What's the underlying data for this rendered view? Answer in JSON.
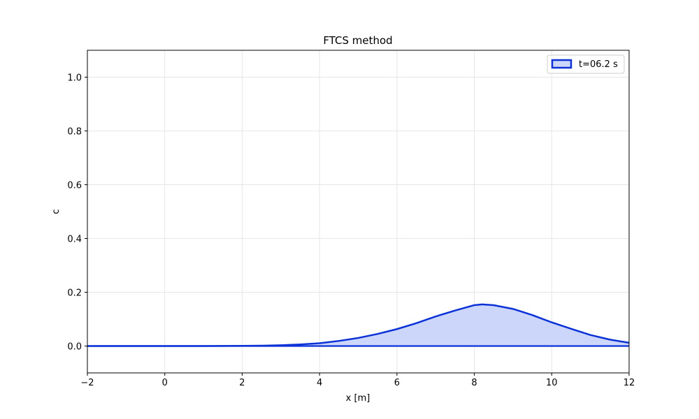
{
  "chart_data": {
    "type": "area",
    "title": "FTCS method",
    "xlabel": "x [m]",
    "ylabel": "c",
    "xlim": [
      -2,
      12
    ],
    "ylim": [
      -0.1,
      1.1
    ],
    "xticks": [
      -2,
      0,
      2,
      4,
      6,
      8,
      10,
      12
    ],
    "yticks": [
      0.0,
      0.2,
      0.4,
      0.6,
      0.8,
      1.0
    ],
    "xtick_labels": [
      "−2",
      "0",
      "2",
      "4",
      "6",
      "8",
      "10",
      "12"
    ],
    "ytick_labels": [
      "0.0",
      "0.2",
      "0.4",
      "0.6",
      "0.8",
      "1.0"
    ],
    "grid": true,
    "legend_position": "top-right",
    "series": [
      {
        "name": "t=06.2 s",
        "line_color": "#0a32d6",
        "fill_color": "#ccd6fa",
        "x": [
          -2,
          -1,
          0,
          1,
          2,
          2.5,
          3,
          3.5,
          4,
          4.5,
          5,
          5.5,
          6,
          6.5,
          7,
          7.5,
          8,
          8.2,
          8.5,
          9,
          9.5,
          10,
          10.5,
          11,
          11.5,
          12
        ],
        "y": [
          0.0,
          0.0,
          0.0,
          0.0,
          0.0005,
          0.0012,
          0.003,
          0.006,
          0.0105,
          0.019,
          0.03,
          0.045,
          0.063,
          0.085,
          0.11,
          0.132,
          0.152,
          0.155,
          0.152,
          0.138,
          0.115,
          0.088,
          0.064,
          0.041,
          0.024,
          0.012
        ]
      }
    ]
  }
}
